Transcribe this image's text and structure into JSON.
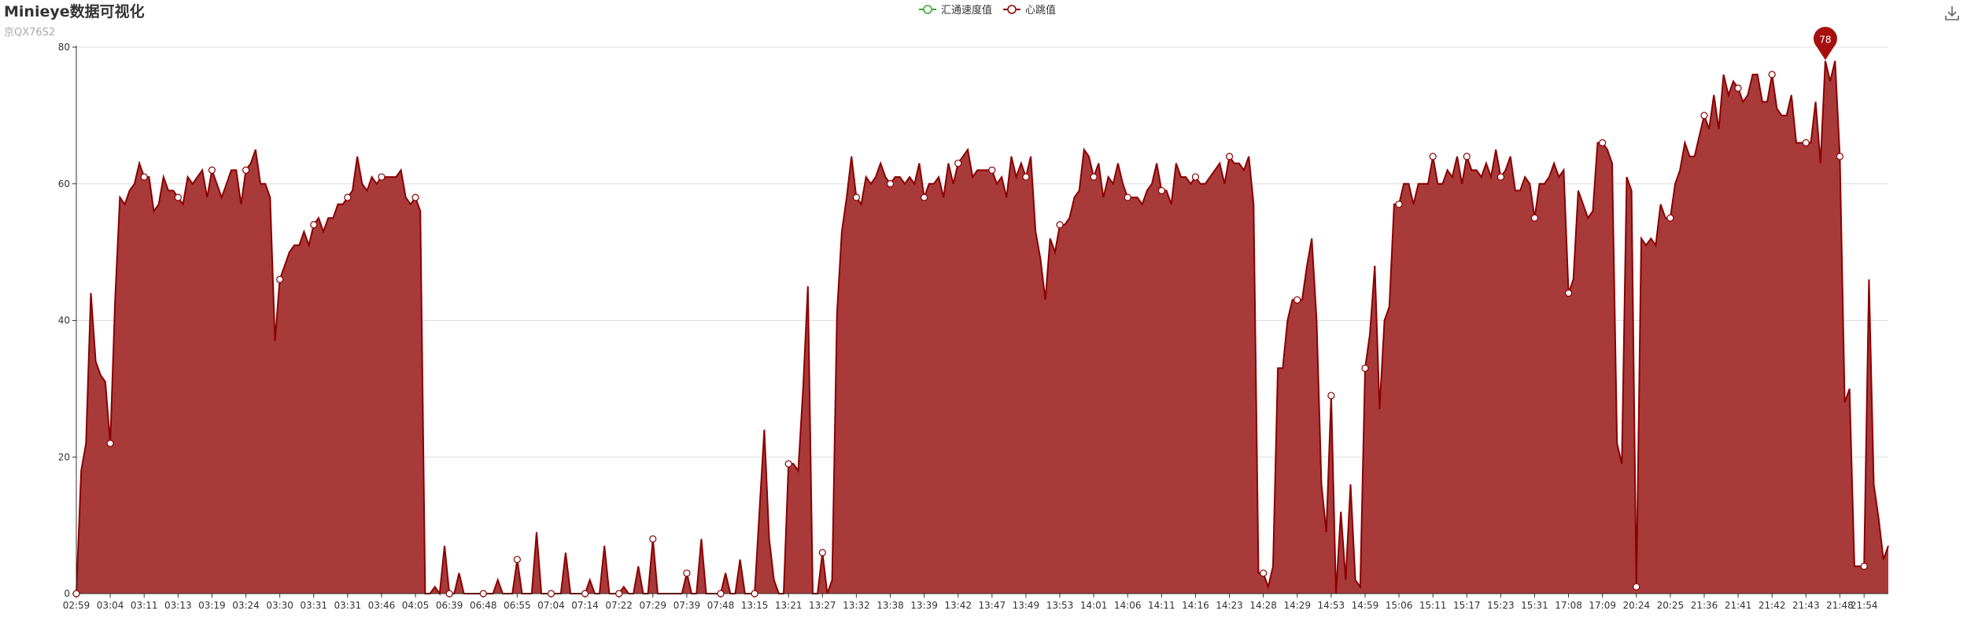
{
  "header": {
    "title": "Minieye数据可视化",
    "subtitle": "京QX76S2"
  },
  "legend": [
    {
      "name": "汇通速度值",
      "color": "#33aa33"
    },
    {
      "name": "心跳值",
      "color": "#8b0000"
    }
  ],
  "toolbox": {
    "icon": "download-icon"
  },
  "chart_data": {
    "type": "area",
    "yticks": [
      0,
      20,
      40,
      60,
      80
    ],
    "ylim": [
      0,
      80
    ],
    "xticks": [
      "02:59",
      "03:04",
      "03:11",
      "03:13",
      "03:19",
      "03:24",
      "03:30",
      "03:31",
      "03:31",
      "03:46",
      "04:05",
      "06:39",
      "06:48",
      "06:55",
      "07:04",
      "07:14",
      "07:22",
      "07:29",
      "07:39",
      "07:48",
      "13:15",
      "13:21",
      "13:27",
      "13:32",
      "13:38",
      "13:39",
      "13:42",
      "13:47",
      "13:49",
      "13:53",
      "14:01",
      "14:06",
      "14:11",
      "14:16",
      "14:23",
      "14:28",
      "14:29",
      "14:53",
      "14:59",
      "15:06",
      "15:11",
      "15:17",
      "15:23",
      "15:31",
      "17:08",
      "17:09",
      "20:24",
      "20:25",
      "21:36",
      "21:41",
      "21:42",
      "21:43",
      "21:48",
      "21:54"
    ],
    "series": [
      {
        "name": "心跳值",
        "color": "#8b0000",
        "fill": "#a83a3a",
        "max_label": "78",
        "values": [
          0,
          18,
          22,
          44,
          34,
          32,
          31,
          22,
          43,
          58,
          57,
          59,
          60,
          63,
          61,
          61,
          56,
          57,
          61,
          59,
          59,
          58,
          57,
          61,
          60,
          61,
          62,
          58,
          62,
          60,
          58,
          60,
          62,
          62,
          57,
          62,
          63,
          65,
          60,
          60,
          58,
          37,
          46,
          48,
          50,
          51,
          51,
          53,
          51,
          54,
          55,
          53,
          55,
          55,
          57,
          57,
          58,
          59,
          64,
          60,
          59,
          61,
          60,
          61,
          61,
          61,
          61,
          62,
          58,
          57,
          58,
          56,
          0,
          0,
          1,
          0,
          7,
          0,
          0,
          3,
          0,
          0,
          0,
          0,
          0,
          0,
          0,
          2,
          0,
          0,
          0,
          5,
          0,
          0,
          0,
          9,
          0,
          0,
          0,
          0,
          0,
          6,
          0,
          0,
          0,
          0,
          2,
          0,
          0,
          7,
          0,
          0,
          0,
          1,
          0,
          0,
          4,
          0,
          0,
          8,
          0,
          0,
          0,
          0,
          0,
          0,
          3,
          0,
          0,
          8,
          0,
          0,
          0,
          0,
          3,
          0,
          0,
          5,
          0,
          0,
          0,
          12,
          24,
          8,
          2,
          0,
          0,
          19,
          19,
          18,
          30,
          45,
          0,
          0,
          6,
          0,
          2,
          41,
          53,
          58,
          64,
          58,
          57,
          61,
          60,
          61,
          63,
          61,
          60,
          61,
          61,
          60,
          61,
          60,
          63,
          58,
          60,
          60,
          61,
          58,
          63,
          60,
          63,
          64,
          65,
          61,
          62,
          62,
          62,
          62,
          60,
          61,
          58,
          64,
          61,
          63,
          61,
          64,
          53,
          49,
          43,
          52,
          50,
          54,
          54,
          55,
          58,
          59,
          65,
          64,
          61,
          63,
          58,
          61,
          60,
          63,
          60,
          58,
          58,
          58,
          57,
          59,
          60,
          63,
          59,
          59,
          57,
          63,
          61,
          61,
          60,
          61,
          60,
          60,
          61,
          62,
          63,
          60,
          64,
          63,
          63,
          62,
          64,
          57,
          3,
          3,
          1,
          4,
          33,
          33,
          40,
          43,
          43,
          43,
          48,
          52,
          40,
          16,
          9,
          29,
          0,
          12,
          2,
          16,
          2,
          1,
          33,
          38,
          48,
          27,
          40,
          42,
          57,
          57,
          60,
          60,
          57,
          60,
          60,
          60,
          64,
          60,
          60,
          62,
          61,
          64,
          60,
          64,
          62,
          62,
          61,
          63,
          61,
          65,
          61,
          62,
          64,
          59,
          59,
          61,
          60,
          55,
          60,
          60,
          61,
          63,
          61,
          62,
          44,
          46,
          59,
          57,
          55,
          56,
          66,
          66,
          65,
          63,
          22,
          19,
          61,
          59,
          1,
          52,
          51,
          52,
          51,
          57,
          55,
          55,
          60,
          62,
          66,
          64,
          64,
          67,
          70,
          68,
          73,
          68,
          76,
          73,
          75,
          74,
          72,
          73,
          76,
          76,
          72,
          72,
          76,
          71,
          70,
          70,
          73,
          66,
          66,
          66,
          66,
          72,
          63,
          78,
          75,
          78,
          64,
          28,
          30,
          4,
          4,
          4,
          46,
          16,
          11,
          5,
          7
        ],
        "markers": [
          0,
          7,
          14,
          21,
          28,
          35,
          42,
          49,
          56,
          63,
          70,
          77,
          84,
          91,
          98,
          105,
          112,
          119,
          126,
          133,
          140,
          147,
          154,
          161,
          168,
          175,
          182,
          189,
          196,
          203,
          210,
          217,
          224,
          231,
          238,
          245,
          252,
          259,
          266,
          273,
          280,
          287,
          294,
          301,
          308,
          315,
          322,
          329,
          336,
          343,
          350,
          357,
          364,
          369
        ]
      },
      {
        "name": "汇通速度值",
        "color": "#33aa33",
        "values": []
      }
    ]
  }
}
